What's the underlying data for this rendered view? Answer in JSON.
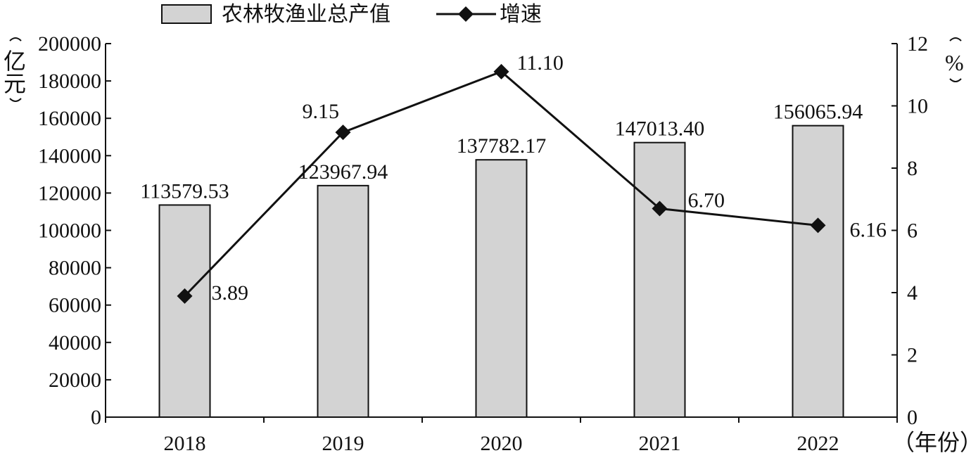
{
  "chart_data": {
    "type": "bar",
    "categories": [
      "2018",
      "2019",
      "2020",
      "2021",
      "2022"
    ],
    "xlabel": "（年份）",
    "ylabel_left": "（亿元）",
    "ylabel_right": "（%）",
    "left_axis": {
      "ylim": [
        0,
        200000
      ],
      "ticks": [
        "0",
        "20000",
        "40000",
        "60000",
        "80000",
        "100000",
        "120000",
        "140000",
        "160000",
        "180000",
        "200000"
      ]
    },
    "right_axis": {
      "ylim": [
        0,
        12
      ],
      "ticks": [
        "0",
        "2",
        "4",
        "6",
        "8",
        "10",
        "12"
      ]
    },
    "grid": false,
    "legend_position": "top",
    "series": [
      {
        "name": "农林牧渔业总产值",
        "type": "bar",
        "axis": "left",
        "color": "#d3d3d3",
        "values": [
          113579.53,
          123967.94,
          137782.17,
          147013.4,
          156065.94
        ],
        "labels": [
          "113579.53",
          "123967.94",
          "137782.17",
          "147013.40",
          "156065.94"
        ]
      },
      {
        "name": "增速",
        "type": "line",
        "axis": "right",
        "color": "#111111",
        "marker": "diamond",
        "values": [
          3.89,
          9.15,
          11.1,
          6.7,
          6.16
        ],
        "labels": [
          "3.89",
          "9.15",
          "11.10",
          "6.70",
          "6.16"
        ]
      }
    ]
  }
}
